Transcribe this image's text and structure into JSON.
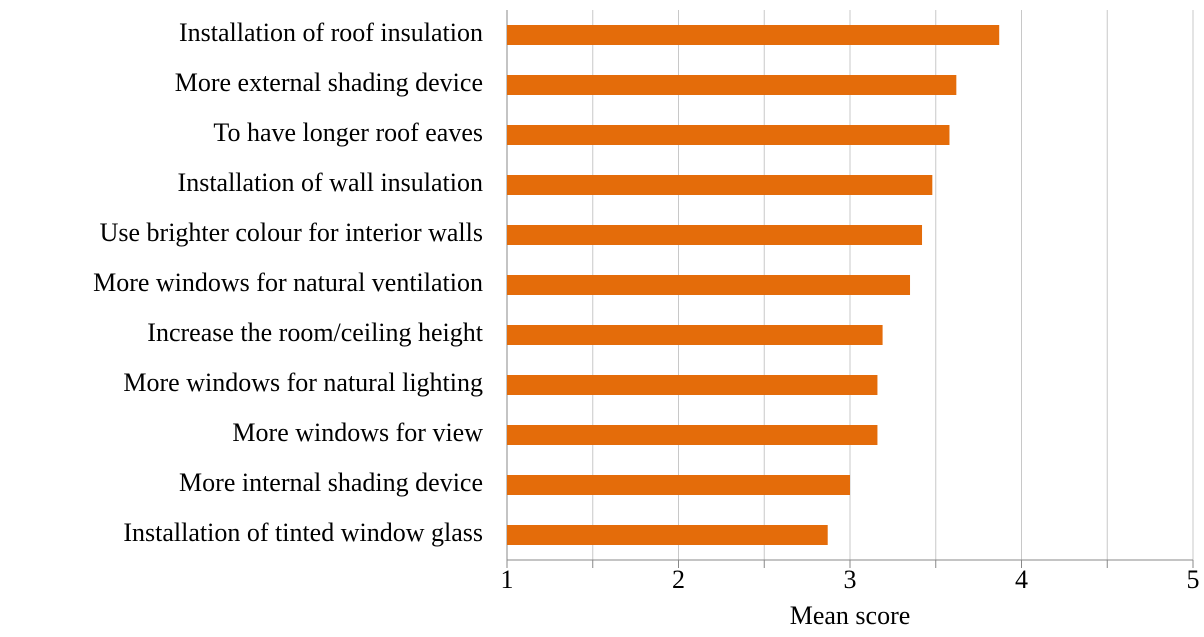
{
  "chart_data": {
    "type": "barh",
    "categories": [
      "Installation of roof insulation",
      "More external shading device",
      "To have longer roof eaves",
      "Installation of wall insulation",
      "Use brighter colour for interior walls",
      "More windows for natural ventilation",
      "Increase the room/ceiling height",
      "More windows for natural lighting",
      "More windows for view",
      "More internal shading device",
      "Installation of tinted window glass"
    ],
    "values": [
      3.87,
      3.62,
      3.58,
      3.48,
      3.42,
      3.35,
      3.19,
      3.16,
      3.16,
      3.0,
      2.87
    ],
    "color": "#e46c0a",
    "xlabel": "Mean score",
    "xlim": [
      1,
      5
    ],
    "xticks": [
      1,
      2,
      3,
      4,
      5
    ],
    "xminorticks": [
      1.5,
      2.5,
      3.5,
      4.5
    ],
    "grid": true
  }
}
